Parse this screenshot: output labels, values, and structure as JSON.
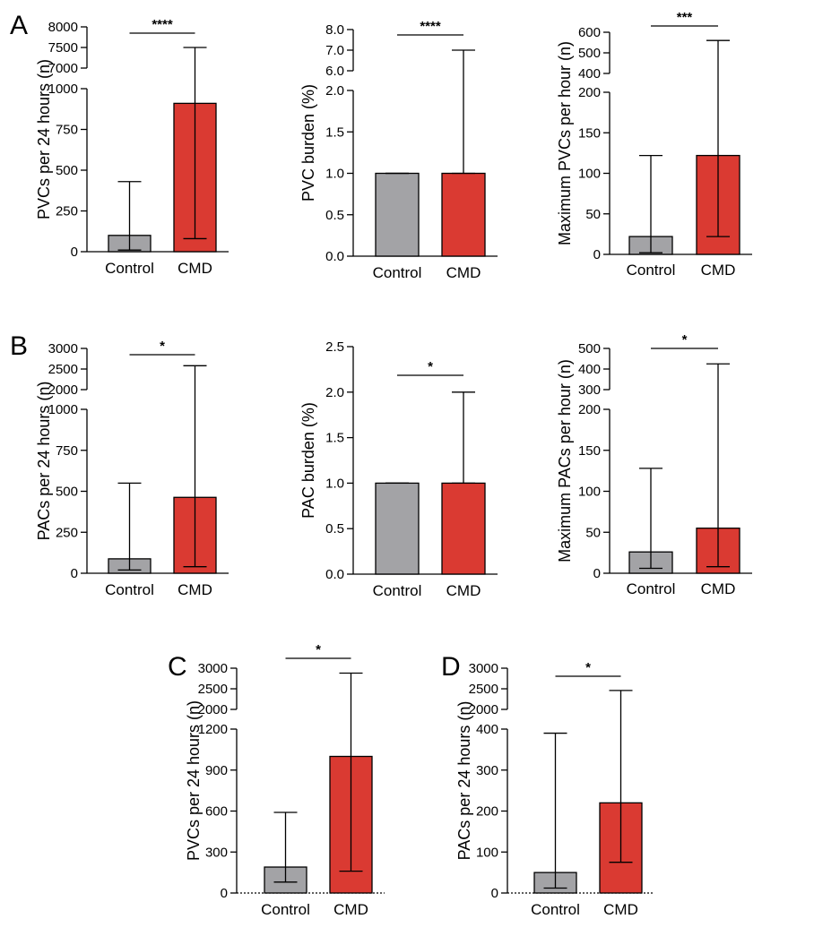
{
  "colors": {
    "control": "#a3a3a6",
    "cmd": "#da3a32",
    "axis": "#000000"
  },
  "chart_data": [
    {
      "panel": "A",
      "type": "bar",
      "ylabel": "PVCs per 24 hours (n)",
      "categories": [
        "Control",
        "CMD"
      ],
      "values": [
        100,
        910
      ],
      "error_low": [
        10,
        80
      ],
      "error_high": [
        430,
        7500
      ],
      "significance": "****",
      "ylim_lower": [
        0,
        1000
      ],
      "yticks_lower": [
        0,
        250,
        500,
        750,
        1000
      ],
      "ylim_upper": [
        7000,
        8000
      ],
      "yticks_upper": [
        7000,
        7500,
        8000
      ],
      "tick_labels_lower": [
        "0",
        "250",
        "500",
        "750",
        "1000"
      ],
      "tick_labels_upper": [
        "7000",
        "7500",
        "8000"
      ]
    },
    {
      "panel": "",
      "type": "bar",
      "ylabel": "PVC burden (%)",
      "categories": [
        "Control",
        "CMD"
      ],
      "values": [
        1.0,
        1.0
      ],
      "error_low": [
        1.0,
        1.0
      ],
      "error_high": [
        1.0,
        7.0
      ],
      "significance": "****",
      "ylim_lower": [
        0,
        2.0
      ],
      "yticks_lower": [
        0,
        0.5,
        1.0,
        1.5,
        2.0
      ],
      "ylim_upper": [
        6.0,
        8.0
      ],
      "yticks_upper": [
        6.0,
        7.0,
        8.0
      ],
      "tick_labels_lower": [
        "0.0",
        "0.5",
        "1.0",
        "1.5",
        "2.0"
      ],
      "tick_labels_upper": [
        "6.0",
        "7.0",
        "8.0"
      ]
    },
    {
      "panel": "",
      "type": "bar",
      "ylabel": "Maximum PVCs per hour (n)",
      "categories": [
        "Control",
        "CMD"
      ],
      "values": [
        22,
        122
      ],
      "error_low": [
        2,
        22
      ],
      "error_high": [
        122,
        560
      ],
      "significance": "***",
      "ylim_lower": [
        0,
        200
      ],
      "yticks_lower": [
        0,
        50,
        100,
        150,
        200
      ],
      "ylim_upper": [
        400,
        600
      ],
      "yticks_upper": [
        400,
        500,
        600
      ],
      "tick_labels_lower": [
        "0",
        "50",
        "100",
        "150",
        "200"
      ],
      "tick_labels_upper": [
        "400",
        "500",
        "600"
      ]
    },
    {
      "panel": "B",
      "type": "bar",
      "ylabel": "PACs per 24 hours (n)",
      "categories": [
        "Control",
        "CMD"
      ],
      "values": [
        88,
        463
      ],
      "error_low": [
        20,
        40
      ],
      "error_high": [
        550,
        2580
      ],
      "significance": "*",
      "ylim_lower": [
        0,
        1000
      ],
      "yticks_lower": [
        0,
        250,
        500,
        750,
        1000
      ],
      "ylim_upper": [
        2000,
        3000
      ],
      "yticks_upper": [
        2000,
        2500,
        3000
      ],
      "tick_labels_lower": [
        "0",
        "250",
        "500",
        "750",
        "1000"
      ],
      "tick_labels_upper": [
        "2000",
        "2500",
        "3000"
      ]
    },
    {
      "panel": "",
      "type": "bar",
      "ylabel": "PAC burden (%)",
      "categories": [
        "Control",
        "CMD"
      ],
      "values": [
        1.0,
        1.0
      ],
      "error_low": [
        1.0,
        1.0
      ],
      "error_high": [
        1.0,
        2.0
      ],
      "significance": "*",
      "ylim_lower": [
        0,
        2.5
      ],
      "yticks_lower": [
        0,
        0.5,
        1.0,
        1.5,
        2.0,
        2.5
      ],
      "tick_labels_lower": [
        "0.0",
        "0.5",
        "1.0",
        "1.5",
        "2.0",
        "2.5"
      ]
    },
    {
      "panel": "",
      "type": "bar",
      "ylabel": "Maximum PACs per hour (n)",
      "categories": [
        "Control",
        "CMD"
      ],
      "values": [
        26,
        55
      ],
      "error_low": [
        6,
        8
      ],
      "error_high": [
        128,
        425
      ],
      "significance": "*",
      "ylim_lower": [
        0,
        200
      ],
      "yticks_lower": [
        0,
        50,
        100,
        150,
        200
      ],
      "ylim_upper": [
        300,
        500
      ],
      "yticks_upper": [
        300,
        400,
        500
      ],
      "tick_labels_lower": [
        "0",
        "50",
        "100",
        "150",
        "200"
      ],
      "tick_labels_upper": [
        "300",
        "400",
        "500"
      ]
    },
    {
      "panel": "C",
      "type": "bar",
      "ylabel": "PVCs per 24 hours (n)",
      "categories": [
        "Control",
        "CMD"
      ],
      "values": [
        190,
        1000
      ],
      "error_low": [
        80,
        160
      ],
      "error_high": [
        590,
        2880
      ],
      "significance": "*",
      "ylim_lower": [
        0,
        1200
      ],
      "yticks_lower": [
        0,
        300,
        600,
        900,
        1200
      ],
      "ylim_upper": [
        2000,
        3000
      ],
      "yticks_upper": [
        2000,
        2500,
        3000
      ],
      "tick_labels_lower": [
        "0",
        "300",
        "600",
        "900",
        "1200"
      ],
      "tick_labels_upper": [
        "2000",
        "2500",
        "3000"
      ]
    },
    {
      "panel": "D",
      "type": "bar",
      "ylabel": "PACs per 24 hours (n)",
      "categories": [
        "Control",
        "CMD"
      ],
      "values": [
        50,
        220
      ],
      "error_low": [
        12,
        75
      ],
      "error_high": [
        390,
        2460
      ],
      "significance": "*",
      "ylim_lower": [
        0,
        400
      ],
      "yticks_lower": [
        0,
        100,
        200,
        300,
        400
      ],
      "ylim_upper": [
        2000,
        3000
      ],
      "yticks_upper": [
        2000,
        2500,
        3000
      ],
      "tick_labels_lower": [
        "0",
        "100",
        "200",
        "300",
        "400"
      ],
      "tick_labels_upper": [
        "2000",
        "2500",
        "3000"
      ]
    }
  ]
}
